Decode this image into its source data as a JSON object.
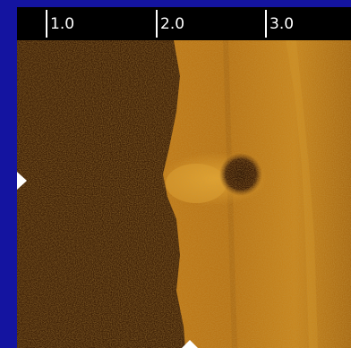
{
  "ruler": {
    "labels": [
      "1.0",
      "2.0",
      "3.0"
    ]
  },
  "colors": {
    "border": "#1414a0",
    "ruler_background": "#000000",
    "ruler_text": "#ffffff",
    "sonar_dark": "#3a1e06",
    "sonar_light": "#c8861e",
    "marker": "#ffffff"
  },
  "image": {
    "description_icon": "sonar-sidescan-image"
  }
}
